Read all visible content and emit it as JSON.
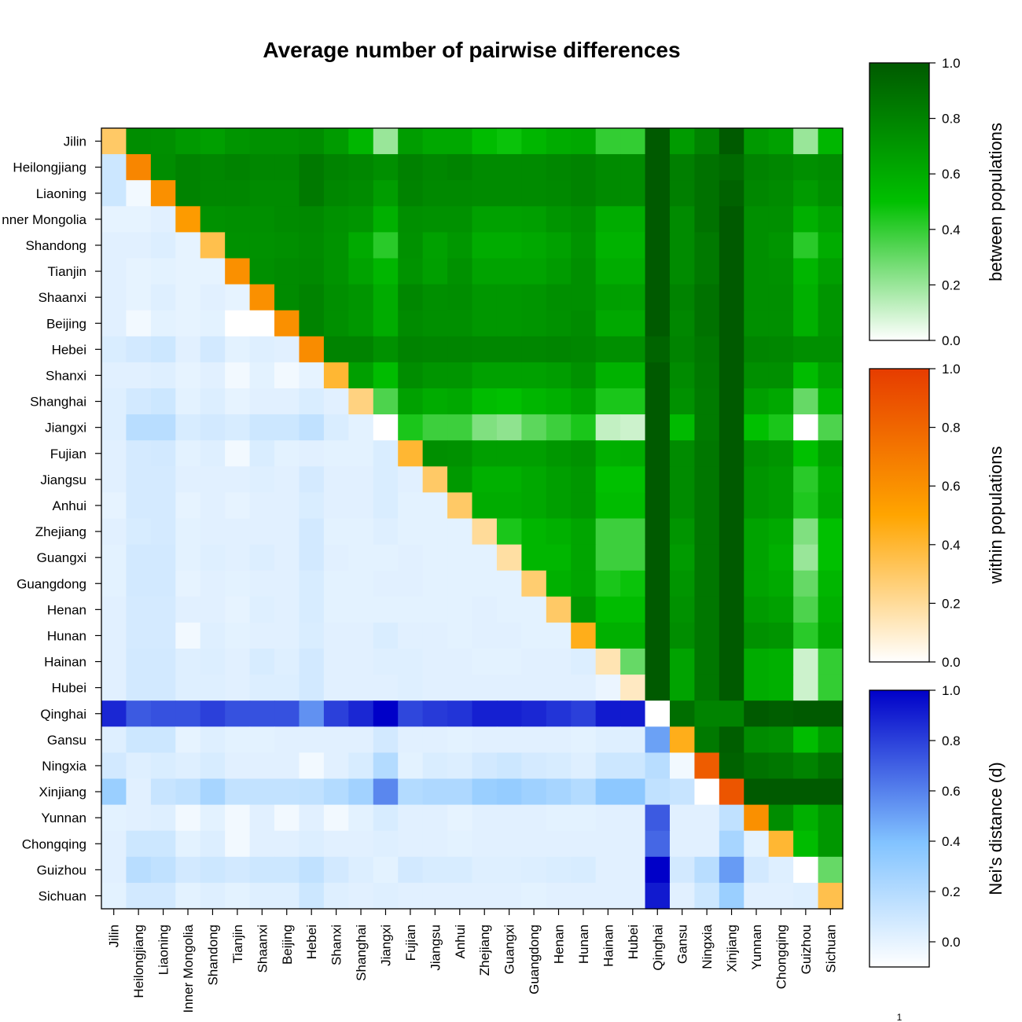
{
  "chart_data": {
    "type": "heatmap",
    "title": "Average number of pairwise differences",
    "footnote": "1",
    "categories": [
      "Jilin",
      "Heilongjiang",
      "Liaoning",
      "Inner Mongolia",
      "Shandong",
      "Tianjin",
      "Shaanxi",
      "Beijing",
      "Hebei",
      "Shanxi",
      "Shanghai",
      "Jiangxi",
      "Fujian",
      "Jiangsu",
      "Anhui",
      "Zhejiang",
      "Guangxi",
      "Guangdong",
      "Henan",
      "Hunan",
      "Hainan",
      "Hubei",
      "Qinghai",
      "Gansu",
      "Ningxia",
      "Xinjiang",
      "Yunnan",
      "Chongqing",
      "Guizhou",
      "Sichuan"
    ],
    "row_display_labels": [
      "Jilin",
      "Heilongjiang",
      "Liaoning",
      "nner Mongolia",
      "Shandong",
      "Tianjin",
      "Shaanxi",
      "Beijing",
      "Hebei",
      "Shanxi",
      "Shanghai",
      "Jiangxi",
      "Fujian",
      "Jiangsu",
      "Anhui",
      "Zhejiang",
      "Guangxi",
      "Guangdong",
      "Henan",
      "Hunan",
      "Hainan",
      "Hubei",
      "Qinghai",
      "Gansu",
      "Ningxia",
      "Xinjiang",
      "Yunnan",
      "Chongqing",
      "Guizhou",
      "Sichuan"
    ],
    "upper_triangle": "between populations (normalized 0-1, green scale)",
    "diagonal": "within populations (normalized 0-1, orange scale)",
    "lower_triangle": "Nei's distance (d) (normalized, blue scale)",
    "colorbars": [
      {
        "label": "between populations",
        "min": 0,
        "max": 1,
        "ticks": [
          "1.0",
          "0.8",
          "0.6",
          "0.4",
          "0.2",
          "0.0"
        ],
        "low_color": "#ffffff",
        "high_color": "#005a00"
      },
      {
        "label": "within populations",
        "min": 0,
        "max": 1,
        "ticks": [
          "1.0",
          "0.8",
          "0.6",
          "0.4",
          "0.2",
          "0.0"
        ],
        "low_color": "#ffffff",
        "high_color": "#e63c00"
      },
      {
        "label": "Nei's distance (d)",
        "min": -0.1,
        "max": 1,
        "ticks": [
          "1.0",
          "0.8",
          "0.6",
          "0.4",
          "0.2",
          "0.0"
        ],
        "low_color": "#ffffff",
        "high_color": "#0000c8"
      }
    ],
    "matrix": [
      [
        0.3,
        0.75,
        0.74,
        0.69,
        0.66,
        0.71,
        0.73,
        0.73,
        0.75,
        0.68,
        0.55,
        0.2,
        0.67,
        0.62,
        0.62,
        0.52,
        0.48,
        0.55,
        0.6,
        0.62,
        0.4,
        0.4,
        1.0,
        0.68,
        0.8,
        1.0,
        0.69,
        0.65,
        0.2,
        0.55
      ],
      [
        0.1,
        0.65,
        0.75,
        0.8,
        0.78,
        0.8,
        0.78,
        0.78,
        0.85,
        0.8,
        0.78,
        0.74,
        0.81,
        0.78,
        0.8,
        0.76,
        0.76,
        0.76,
        0.78,
        0.8,
        0.76,
        0.76,
        1.0,
        0.82,
        0.88,
        0.92,
        0.8,
        0.78,
        0.74,
        0.76
      ],
      [
        0.1,
        -0.05,
        0.6,
        0.8,
        0.78,
        0.78,
        0.76,
        0.76,
        0.85,
        0.78,
        0.76,
        0.67,
        0.8,
        0.77,
        0.77,
        0.76,
        0.76,
        0.76,
        0.77,
        0.8,
        0.76,
        0.76,
        1.0,
        0.82,
        0.88,
        0.96,
        0.78,
        0.76,
        0.68,
        0.74
      ],
      [
        0.0,
        0.0,
        0.02,
        0.55,
        0.73,
        0.74,
        0.74,
        0.76,
        0.77,
        0.73,
        0.71,
        0.58,
        0.74,
        0.73,
        0.73,
        0.65,
        0.65,
        0.66,
        0.71,
        0.74,
        0.6,
        0.6,
        1.0,
        0.76,
        0.88,
        1.0,
        0.74,
        0.74,
        0.58,
        0.65
      ],
      [
        0.02,
        0.02,
        0.04,
        0.0,
        0.35,
        0.73,
        0.73,
        0.74,
        0.76,
        0.72,
        0.61,
        0.42,
        0.73,
        0.65,
        0.7,
        0.6,
        0.6,
        0.62,
        0.65,
        0.72,
        0.57,
        0.57,
        1.0,
        0.76,
        0.85,
        1.0,
        0.74,
        0.71,
        0.42,
        0.6
      ],
      [
        0.02,
        0.0,
        0.01,
        0.0,
        0.0,
        0.6,
        0.74,
        0.76,
        0.77,
        0.72,
        0.64,
        0.55,
        0.72,
        0.66,
        0.73,
        0.64,
        0.64,
        0.64,
        0.68,
        0.74,
        0.6,
        0.6,
        1.0,
        0.76,
        0.85,
        1.0,
        0.74,
        0.73,
        0.55,
        0.66
      ],
      [
        0.02,
        0.0,
        0.03,
        0.0,
        0.02,
        0.0,
        0.6,
        0.76,
        0.8,
        0.74,
        0.71,
        0.6,
        0.78,
        0.74,
        0.75,
        0.7,
        0.7,
        0.71,
        0.74,
        0.74,
        0.66,
        0.66,
        1.0,
        0.8,
        0.88,
        1.0,
        0.74,
        0.74,
        0.58,
        0.71
      ],
      [
        0.02,
        -0.05,
        0.01,
        0.0,
        0.01,
        -0.1,
        -0.1,
        0.6,
        0.8,
        0.74,
        0.7,
        0.6,
        0.76,
        0.74,
        0.74,
        0.7,
        0.7,
        0.71,
        0.73,
        0.76,
        0.62,
        0.62,
        1.0,
        0.78,
        0.88,
        1.0,
        0.74,
        0.74,
        0.58,
        0.71
      ],
      [
        0.05,
        0.08,
        0.1,
        0.02,
        0.08,
        0.01,
        0.03,
        0.02,
        0.62,
        0.8,
        0.8,
        0.73,
        0.8,
        0.79,
        0.79,
        0.78,
        0.78,
        0.78,
        0.79,
        0.78,
        0.74,
        0.74,
        0.95,
        0.8,
        0.86,
        1.0,
        0.79,
        0.78,
        0.74,
        0.74
      ],
      [
        0.02,
        0.02,
        0.03,
        0.0,
        0.02,
        -0.05,
        0.01,
        -0.05,
        0.0,
        0.4,
        0.66,
        0.52,
        0.75,
        0.71,
        0.71,
        0.65,
        0.65,
        0.65,
        0.67,
        0.73,
        0.57,
        0.57,
        1.0,
        0.76,
        0.85,
        1.0,
        0.74,
        0.74,
        0.52,
        0.65
      ],
      [
        0.03,
        0.08,
        0.1,
        0.01,
        0.04,
        0.0,
        0.02,
        0.02,
        0.05,
        0.02,
        0.25,
        0.35,
        0.65,
        0.6,
        0.62,
        0.52,
        0.5,
        0.55,
        0.58,
        0.64,
        0.45,
        0.45,
        1.0,
        0.73,
        0.84,
        1.0,
        0.66,
        0.62,
        0.3,
        0.55
      ],
      [
        0.03,
        0.18,
        0.18,
        0.06,
        0.08,
        0.06,
        0.1,
        0.1,
        0.15,
        0.05,
        0.01,
        0.0,
        0.45,
        0.38,
        0.38,
        0.25,
        0.22,
        0.32,
        0.38,
        0.45,
        0.12,
        0.1,
        1.0,
        0.53,
        0.84,
        1.0,
        0.5,
        0.45,
        0.0,
        0.35
      ],
      [
        0.02,
        0.07,
        0.08,
        0.01,
        0.03,
        -0.05,
        0.05,
        0.01,
        0.02,
        0.01,
        0.01,
        0.05,
        0.4,
        0.74,
        0.73,
        0.66,
        0.66,
        0.66,
        0.7,
        0.73,
        0.58,
        0.6,
        1.0,
        0.76,
        0.86,
        1.0,
        0.74,
        0.71,
        0.5,
        0.66
      ],
      [
        0.02,
        0.07,
        0.07,
        0.02,
        0.02,
        0.02,
        0.03,
        0.02,
        0.07,
        0.02,
        0.02,
        0.05,
        0.02,
        0.3,
        0.69,
        0.58,
        0.58,
        0.62,
        0.66,
        0.7,
        0.5,
        0.5,
        1.0,
        0.76,
        0.86,
        1.0,
        0.71,
        0.68,
        0.42,
        0.6
      ],
      [
        0.0,
        0.07,
        0.07,
        0.0,
        0.02,
        0.0,
        0.02,
        0.02,
        0.05,
        0.02,
        0.02,
        0.05,
        0.01,
        0.01,
        0.3,
        0.6,
        0.6,
        0.62,
        0.66,
        0.7,
        0.52,
        0.52,
        1.0,
        0.76,
        0.86,
        1.0,
        0.71,
        0.68,
        0.44,
        0.62
      ],
      [
        0.02,
        0.06,
        0.07,
        0.01,
        0.02,
        0.02,
        0.02,
        0.02,
        0.08,
        0.01,
        0.01,
        0.03,
        0.01,
        0.01,
        0.01,
        0.2,
        0.45,
        0.55,
        0.58,
        0.63,
        0.38,
        0.38,
        1.0,
        0.71,
        0.86,
        1.0,
        0.64,
        0.61,
        0.25,
        0.5
      ],
      [
        0.01,
        0.08,
        0.08,
        0.01,
        0.03,
        0.02,
        0.04,
        0.02,
        0.08,
        0.02,
        0.01,
        0.01,
        0.02,
        0.01,
        0.01,
        0.01,
        0.18,
        0.55,
        0.55,
        0.63,
        0.38,
        0.38,
        1.0,
        0.68,
        0.86,
        1.0,
        0.64,
        0.58,
        0.2,
        0.5
      ],
      [
        0.01,
        0.08,
        0.08,
        0.0,
        0.02,
        0.01,
        0.02,
        0.02,
        0.06,
        0.01,
        0.01,
        0.02,
        0.02,
        0.01,
        0.01,
        0.01,
        0.01,
        0.28,
        0.58,
        0.63,
        0.45,
        0.48,
        1.0,
        0.71,
        0.86,
        1.0,
        0.64,
        0.61,
        0.3,
        0.55
      ],
      [
        0.02,
        0.07,
        0.07,
        0.02,
        0.02,
        0.0,
        0.03,
        0.02,
        0.06,
        0.01,
        0.01,
        0.01,
        0.01,
        0.01,
        0.01,
        0.02,
        0.01,
        0.01,
        0.3,
        0.7,
        0.52,
        0.52,
        1.0,
        0.73,
        0.86,
        1.0,
        0.68,
        0.65,
        0.35,
        0.58
      ],
      [
        0.02,
        0.07,
        0.07,
        -0.05,
        0.03,
        0.01,
        0.02,
        0.02,
        0.05,
        0.02,
        0.02,
        0.05,
        0.02,
        0.02,
        0.01,
        0.02,
        0.02,
        0.01,
        0.01,
        0.45,
        0.58,
        0.58,
        1.0,
        0.75,
        0.86,
        1.0,
        0.73,
        0.71,
        0.42,
        0.62
      ],
      [
        0.02,
        0.08,
        0.08,
        0.03,
        0.04,
        0.02,
        0.06,
        0.03,
        0.08,
        0.02,
        0.02,
        0.03,
        0.03,
        0.02,
        0.02,
        0.01,
        0.01,
        0.02,
        0.02,
        0.04,
        0.15,
        0.3,
        1.0,
        0.64,
        0.86,
        1.0,
        0.6,
        0.58,
        0.1,
        0.4
      ],
      [
        0.02,
        0.08,
        0.08,
        0.03,
        0.03,
        0.02,
        0.04,
        0.04,
        0.08,
        0.02,
        0.02,
        0.02,
        0.03,
        0.02,
        0.02,
        0.02,
        0.02,
        0.02,
        0.02,
        0.02,
        -0.02,
        0.12,
        1.0,
        0.64,
        0.86,
        1.0,
        0.6,
        0.58,
        0.1,
        0.4
      ],
      [
        0.88,
        0.72,
        0.75,
        0.75,
        0.8,
        0.75,
        0.75,
        0.75,
        0.55,
        0.8,
        0.88,
        1.0,
        0.78,
        0.82,
        0.84,
        0.9,
        0.9,
        0.88,
        0.84,
        0.8,
        0.92,
        0.92,
        0.0,
        0.9,
        0.8,
        0.8,
        1.0,
        0.98,
        1.0,
        1.0
      ],
      [
        0.03,
        0.1,
        0.1,
        0.0,
        0.03,
        0.01,
        0.01,
        0.02,
        0.02,
        0.02,
        0.02,
        0.08,
        0.02,
        0.02,
        0.01,
        0.02,
        0.02,
        0.02,
        0.02,
        0.01,
        0.03,
        0.03,
        0.5,
        0.45,
        0.85,
        0.98,
        0.76,
        0.74,
        0.52,
        0.68
      ],
      [
        0.08,
        0.03,
        0.05,
        0.03,
        0.06,
        0.02,
        0.02,
        0.02,
        -0.05,
        0.02,
        0.06,
        0.2,
        0.01,
        0.05,
        0.04,
        0.08,
        0.1,
        0.07,
        0.06,
        0.03,
        0.1,
        0.1,
        0.18,
        -0.05,
        0.85,
        0.96,
        0.88,
        0.86,
        0.8,
        0.88
      ],
      [
        0.3,
        0.02,
        0.12,
        0.15,
        0.25,
        0.14,
        0.14,
        0.14,
        0.15,
        0.2,
        0.27,
        0.58,
        0.2,
        0.22,
        0.22,
        0.3,
        0.32,
        0.28,
        0.25,
        0.2,
        0.35,
        0.35,
        0.15,
        0.12,
        -0.1,
        0.88,
        1.0,
        1.0,
        1.0,
        1.0
      ],
      [
        0.01,
        0.02,
        0.03,
        -0.05,
        0.01,
        -0.05,
        0.02,
        -0.05,
        0.02,
        -0.05,
        0.01,
        0.06,
        0.02,
        0.02,
        0.0,
        0.02,
        0.02,
        0.02,
        0.01,
        0.01,
        0.02,
        0.02,
        0.72,
        0.02,
        0.02,
        0.15,
        0.6,
        0.75,
        0.58,
        0.7
      ],
      [
        0.02,
        0.1,
        0.1,
        0.01,
        0.04,
        -0.05,
        0.02,
        0.02,
        0.04,
        0.02,
        0.02,
        0.03,
        0.02,
        0.02,
        0.01,
        0.02,
        0.02,
        0.02,
        0.02,
        0.02,
        0.02,
        0.02,
        0.68,
        0.02,
        0.02,
        0.25,
        0.01,
        0.4,
        0.52,
        0.7
      ],
      [
        0.02,
        0.18,
        0.15,
        0.08,
        0.1,
        0.08,
        0.1,
        0.1,
        0.15,
        0.08,
        0.04,
        0.01,
        0.08,
        0.06,
        0.06,
        0.03,
        0.03,
        0.04,
        0.05,
        0.06,
        0.02,
        0.02,
        1.0,
        0.08,
        0.18,
        0.52,
        0.08,
        0.03,
        0.0,
        0.3
      ],
      [
        0.01,
        0.08,
        0.08,
        0.01,
        0.03,
        0.01,
        0.03,
        0.03,
        0.1,
        0.03,
        0.02,
        0.03,
        0.02,
        0.02,
        0.02,
        0.02,
        0.02,
        0.01,
        0.02,
        0.02,
        0.02,
        0.02,
        0.92,
        0.02,
        0.1,
        0.3,
        0.02,
        0.02,
        0.03,
        0.35
      ]
    ]
  }
}
